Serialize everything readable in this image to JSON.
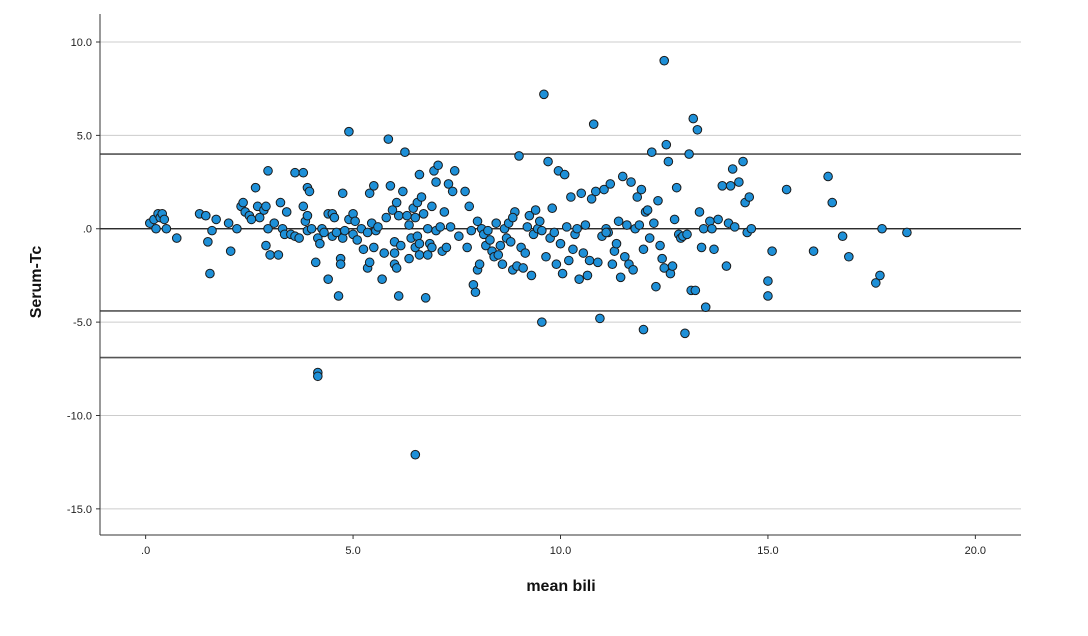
{
  "chart_data": {
    "type": "scatter",
    "xlabel": "mean bili",
    "ylabel": "Serum-Tc",
    "xlim": [
      -1.1,
      21.1
    ],
    "ylim": [
      -16.4,
      11.5
    ],
    "xticks": [
      {
        "value": 0,
        "label": ".0"
      },
      {
        "value": 5,
        "label": "5.0"
      },
      {
        "value": 10,
        "label": "10.0"
      },
      {
        "value": 15,
        "label": "15.0"
      },
      {
        "value": 20,
        "label": "20.0"
      }
    ],
    "yticks": [
      {
        "value": 10,
        "label": "10.0"
      },
      {
        "value": 5,
        "label": "5.0"
      },
      {
        "value": 0,
        "label": ".0"
      },
      {
        "value": -5,
        "label": "-5.0"
      },
      {
        "value": -10,
        "label": "-10.0"
      },
      {
        "value": -15,
        "label": "-15.0"
      }
    ],
    "grid": {
      "horizontal": true,
      "vertical": false
    },
    "reference_lines": [
      {
        "y": 4.0
      },
      {
        "y": 0.0
      },
      {
        "y": -4.4
      },
      {
        "y": -6.9
      }
    ],
    "marker_color": "#1e90d8",
    "marker_edge_color": "#1a1a1a",
    "line_color": "#555555",
    "grid_color": "#cccccc",
    "points": [
      [
        0.1,
        0.3
      ],
      [
        0.2,
        0.5
      ],
      [
        0.3,
        0.8
      ],
      [
        0.35,
        0.6
      ],
      [
        0.4,
        0.8
      ],
      [
        0.45,
        0.5
      ],
      [
        0.25,
        0.0
      ],
      [
        0.5,
        0.0
      ],
      [
        0.75,
        -0.5
      ],
      [
        1.3,
        0.8
      ],
      [
        1.45,
        0.7
      ],
      [
        1.5,
        -0.7
      ],
      [
        1.55,
        -2.4
      ],
      [
        1.6,
        -0.1
      ],
      [
        1.7,
        0.5
      ],
      [
        2.0,
        0.3
      ],
      [
        2.05,
        -1.2
      ],
      [
        2.2,
        0.0
      ],
      [
        2.3,
        1.2
      ],
      [
        2.35,
        1.4
      ],
      [
        2.4,
        0.9
      ],
      [
        2.5,
        0.7
      ],
      [
        2.55,
        0.5
      ],
      [
        2.65,
        2.2
      ],
      [
        2.7,
        1.2
      ],
      [
        2.75,
        0.6
      ],
      [
        2.85,
        1.0
      ],
      [
        2.9,
        1.2
      ],
      [
        2.9,
        -0.9
      ],
      [
        2.95,
        3.1
      ],
      [
        3.0,
        -1.4
      ],
      [
        2.95,
        0.0
      ],
      [
        3.1,
        0.3
      ],
      [
        3.2,
        -1.4
      ],
      [
        3.25,
        1.4
      ],
      [
        3.3,
        0.0
      ],
      [
        3.35,
        -0.3
      ],
      [
        3.4,
        0.9
      ],
      [
        3.5,
        -0.3
      ],
      [
        3.6,
        -0.4
      ],
      [
        3.6,
        3.0
      ],
      [
        3.7,
        -0.5
      ],
      [
        3.8,
        3.0
      ],
      [
        3.8,
        1.2
      ],
      [
        3.85,
        0.4
      ],
      [
        3.9,
        0.7
      ],
      [
        3.9,
        2.2
      ],
      [
        3.9,
        -0.1
      ],
      [
        3.95,
        2.0
      ],
      [
        4.0,
        0.0
      ],
      [
        4.1,
        -1.8
      ],
      [
        4.15,
        -0.5
      ],
      [
        4.2,
        -0.8
      ],
      [
        4.25,
        0.0
      ],
      [
        4.3,
        -0.2
      ],
      [
        4.15,
        -7.7
      ],
      [
        4.15,
        -7.9
      ],
      [
        4.4,
        -2.7
      ],
      [
        4.4,
        0.8
      ],
      [
        4.5,
        0.8
      ],
      [
        4.5,
        -0.4
      ],
      [
        4.55,
        0.6
      ],
      [
        4.6,
        -0.2
      ],
      [
        4.65,
        -3.6
      ],
      [
        4.7,
        -1.6
      ],
      [
        4.7,
        -1.9
      ],
      [
        4.75,
        -0.5
      ],
      [
        4.75,
        1.9
      ],
      [
        4.8,
        -0.1
      ],
      [
        4.9,
        0.5
      ],
      [
        4.9,
        5.2
      ],
      [
        5.0,
        -0.3
      ],
      [
        5.0,
        0.8
      ],
      [
        5.05,
        0.4
      ],
      [
        5.1,
        -0.6
      ],
      [
        5.2,
        0.0
      ],
      [
        5.25,
        -1.1
      ],
      [
        5.35,
        -0.2
      ],
      [
        5.35,
        -2.1
      ],
      [
        5.4,
        1.9
      ],
      [
        5.4,
        -1.8
      ],
      [
        5.45,
        0.3
      ],
      [
        5.5,
        2.3
      ],
      [
        5.5,
        -1.0
      ],
      [
        5.55,
        -0.1
      ],
      [
        5.6,
        0.1
      ],
      [
        5.7,
        -2.7
      ],
      [
        5.75,
        -1.3
      ],
      [
        5.8,
        0.6
      ],
      [
        5.85,
        4.8
      ],
      [
        5.9,
        2.3
      ],
      [
        5.95,
        1.0
      ],
      [
        6.0,
        -1.3
      ],
      [
        6.0,
        -0.7
      ],
      [
        6.0,
        -1.9
      ],
      [
        6.05,
        -2.1
      ],
      [
        6.05,
        1.4
      ],
      [
        6.1,
        0.7
      ],
      [
        6.15,
        -0.9
      ],
      [
        6.1,
        -3.6
      ],
      [
        6.2,
        2.0
      ],
      [
        6.25,
        4.1
      ],
      [
        6.3,
        0.7
      ],
      [
        6.35,
        -1.6
      ],
      [
        6.35,
        0.2
      ],
      [
        6.4,
        -0.5
      ],
      [
        6.45,
        1.1
      ],
      [
        6.5,
        0.6
      ],
      [
        6.5,
        -1.0
      ],
      [
        6.55,
        1.4
      ],
      [
        6.55,
        -0.4
      ],
      [
        6.6,
        2.9
      ],
      [
        6.6,
        -1.4
      ],
      [
        6.6,
        -0.8
      ],
      [
        6.65,
        1.7
      ],
      [
        6.7,
        0.8
      ],
      [
        6.75,
        -3.7
      ],
      [
        6.8,
        -1.4
      ],
      [
        6.8,
        0.0
      ],
      [
        6.85,
        -0.8
      ],
      [
        6.9,
        1.2
      ],
      [
        6.9,
        -1.0
      ],
      [
        6.95,
        3.1
      ],
      [
        7.0,
        2.5
      ],
      [
        7.0,
        -0.1
      ],
      [
        7.05,
        3.4
      ],
      [
        7.1,
        0.1
      ],
      [
        7.15,
        -1.2
      ],
      [
        7.2,
        0.9
      ],
      [
        7.25,
        -1.0
      ],
      [
        7.3,
        2.4
      ],
      [
        7.35,
        0.1
      ],
      [
        7.4,
        2.0
      ],
      [
        7.45,
        3.1
      ],
      [
        6.5,
        -12.1
      ],
      [
        7.55,
        -0.4
      ],
      [
        7.7,
        2.0
      ],
      [
        7.75,
        -1.0
      ],
      [
        7.8,
        1.2
      ],
      [
        7.85,
        -0.1
      ],
      [
        7.9,
        -3.0
      ],
      [
        7.95,
        -3.4
      ],
      [
        8.0,
        0.4
      ],
      [
        8.0,
        -2.2
      ],
      [
        8.05,
        -1.9
      ],
      [
        8.1,
        0.0
      ],
      [
        8.15,
        -0.3
      ],
      [
        8.2,
        -0.9
      ],
      [
        8.25,
        -0.1
      ],
      [
        8.3,
        -0.6
      ],
      [
        8.35,
        -1.2
      ],
      [
        8.4,
        -1.5
      ],
      [
        8.45,
        0.3
      ],
      [
        8.5,
        -1.4
      ],
      [
        8.55,
        -0.9
      ],
      [
        8.6,
        -1.9
      ],
      [
        8.65,
        0.0
      ],
      [
        8.7,
        -0.5
      ],
      [
        8.75,
        0.3
      ],
      [
        8.8,
        -0.7
      ],
      [
        8.85,
        -2.2
      ],
      [
        8.9,
        0.9
      ],
      [
        8.95,
        -2.0
      ],
      [
        9.0,
        3.9
      ],
      [
        9.05,
        -1.0
      ],
      [
        9.1,
        -2.1
      ],
      [
        9.15,
        -1.3
      ],
      [
        9.2,
        0.1
      ],
      [
        9.25,
        0.7
      ],
      [
        9.3,
        -2.5
      ],
      [
        9.35,
        -0.3
      ],
      [
        9.4,
        1.0
      ],
      [
        9.45,
        0.0
      ],
      [
        9.5,
        0.4
      ],
      [
        9.55,
        -5.0
      ],
      [
        9.6,
        7.2
      ],
      [
        9.65,
        -1.5
      ],
      [
        9.7,
        3.6
      ],
      [
        9.75,
        -0.5
      ],
      [
        9.8,
        1.1
      ],
      [
        9.85,
        -0.2
      ],
      [
        9.9,
        -1.9
      ],
      [
        9.95,
        3.1
      ],
      [
        10.0,
        -0.8
      ],
      [
        10.05,
        -2.4
      ],
      [
        10.1,
        2.9
      ],
      [
        10.15,
        0.1
      ],
      [
        10.2,
        -1.7
      ],
      [
        10.25,
        1.7
      ],
      [
        10.3,
        -1.1
      ],
      [
        10.35,
        -0.3
      ],
      [
        10.4,
        0.0
      ],
      [
        10.45,
        -2.7
      ],
      [
        10.5,
        1.9
      ],
      [
        10.55,
        -1.3
      ],
      [
        10.6,
        0.2
      ],
      [
        10.65,
        -2.5
      ],
      [
        10.7,
        -1.7
      ],
      [
        10.75,
        1.6
      ],
      [
        10.8,
        5.6
      ],
      [
        10.85,
        2.0
      ],
      [
        10.9,
        -1.8
      ],
      [
        10.95,
        -4.8
      ],
      [
        11.0,
        -0.4
      ],
      [
        11.05,
        2.1
      ],
      [
        11.1,
        0.0
      ],
      [
        11.15,
        -0.2
      ],
      [
        11.2,
        2.4
      ],
      [
        11.25,
        -1.9
      ],
      [
        11.3,
        -1.2
      ],
      [
        11.35,
        -0.8
      ],
      [
        11.4,
        0.4
      ],
      [
        11.45,
        -2.6
      ],
      [
        11.5,
        2.8
      ],
      [
        11.55,
        -1.5
      ],
      [
        11.6,
        0.2
      ],
      [
        11.65,
        -1.9
      ],
      [
        11.7,
        2.5
      ],
      [
        11.75,
        -2.2
      ],
      [
        11.8,
        0.0
      ],
      [
        11.85,
        1.7
      ],
      [
        11.9,
        0.2
      ],
      [
        11.95,
        2.1
      ],
      [
        12.0,
        -1.1
      ],
      [
        12.0,
        -5.4
      ],
      [
        12.05,
        0.9
      ],
      [
        12.1,
        1.0
      ],
      [
        12.15,
        -0.5
      ],
      [
        12.2,
        4.1
      ],
      [
        12.25,
        0.3
      ],
      [
        12.3,
        -3.1
      ],
      [
        12.35,
        1.5
      ],
      [
        12.4,
        -0.9
      ],
      [
        12.45,
        -1.6
      ],
      [
        12.5,
        -2.1
      ],
      [
        12.5,
        9.0
      ],
      [
        12.55,
        4.5
      ],
      [
        12.6,
        3.6
      ],
      [
        12.65,
        -2.4
      ],
      [
        12.7,
        -2.0
      ],
      [
        12.75,
        0.5
      ],
      [
        12.8,
        2.2
      ],
      [
        12.85,
        -0.3
      ],
      [
        12.9,
        -0.5
      ],
      [
        12.95,
        -0.4
      ],
      [
        13.0,
        -5.6
      ],
      [
        13.05,
        -0.3
      ],
      [
        13.1,
        4.0
      ],
      [
        13.15,
        -3.3
      ],
      [
        13.2,
        5.9
      ],
      [
        13.25,
        -3.3
      ],
      [
        13.3,
        5.3
      ],
      [
        13.35,
        0.9
      ],
      [
        13.4,
        -1.0
      ],
      [
        13.45,
        0.0
      ],
      [
        13.5,
        -4.2
      ],
      [
        13.6,
        0.4
      ],
      [
        13.7,
        -1.1
      ],
      [
        13.8,
        0.5
      ],
      [
        13.9,
        2.3
      ],
      [
        14.0,
        -2.0
      ],
      [
        14.05,
        0.3
      ],
      [
        14.1,
        2.3
      ],
      [
        14.15,
        3.2
      ],
      [
        14.2,
        0.1
      ],
      [
        14.3,
        2.5
      ],
      [
        14.4,
        3.6
      ],
      [
        14.45,
        1.4
      ],
      [
        14.5,
        -0.2
      ],
      [
        14.55,
        1.7
      ],
      [
        14.6,
        0.0
      ],
      [
        15.0,
        -2.8
      ],
      [
        15.0,
        -3.6
      ],
      [
        15.1,
        -1.2
      ],
      [
        15.45,
        2.1
      ],
      [
        16.1,
        -1.2
      ],
      [
        16.45,
        2.8
      ],
      [
        16.55,
        1.4
      ],
      [
        16.8,
        -0.4
      ],
      [
        16.95,
        -1.5
      ],
      [
        17.6,
        -2.9
      ],
      [
        17.7,
        -2.5
      ],
      [
        17.75,
        0.0
      ],
      [
        18.35,
        -0.2
      ],
      [
        13.65,
        0.0
      ],
      [
        11.1,
        -0.2
      ],
      [
        9.55,
        -0.1
      ],
      [
        8.85,
        0.6
      ]
    ]
  }
}
